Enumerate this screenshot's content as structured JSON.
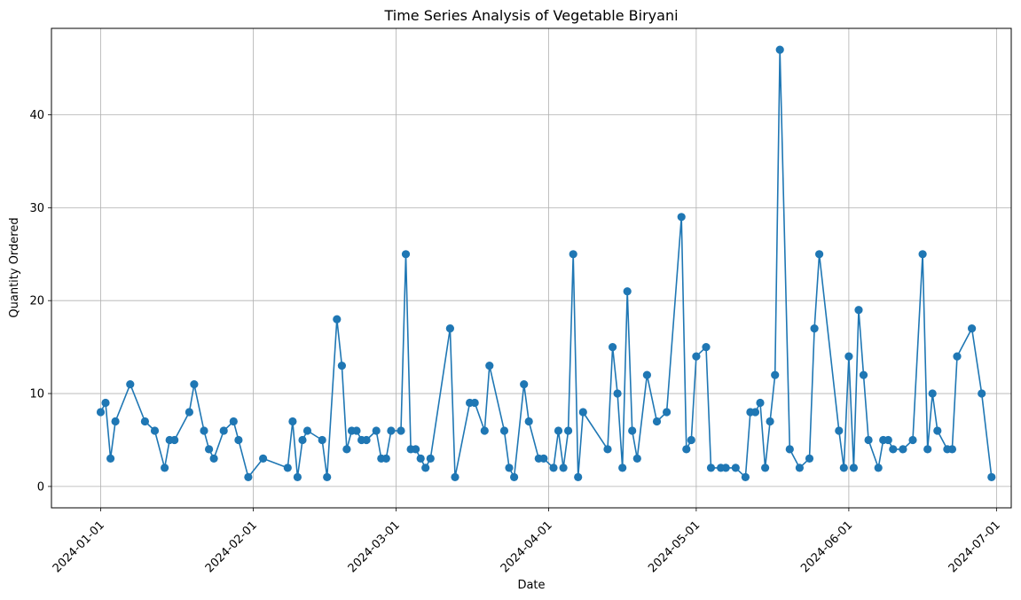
{
  "chart_data": {
    "type": "line",
    "title": "Time Series Analysis of Vegetable Biryani",
    "xlabel": "Date",
    "ylabel": "Quantity Ordered",
    "xlim": [
      "2023-12-22",
      "2024-07-04"
    ],
    "ylim": [
      -2.3,
      49.3
    ],
    "x_ticks": [
      "2024-01-01",
      "2024-02-01",
      "2024-03-01",
      "2024-04-01",
      "2024-05-01",
      "2024-06-01",
      "2024-07-01"
    ],
    "y_ticks": [
      0,
      10,
      20,
      30,
      40
    ],
    "grid": true,
    "marker": "circle",
    "color": "#1f77b4",
    "series": [
      {
        "points": [
          [
            "2024-01-01",
            8
          ],
          [
            "2024-01-02",
            9
          ],
          [
            "2024-01-03",
            3
          ],
          [
            "2024-01-04",
            7
          ],
          [
            "2024-01-07",
            11
          ],
          [
            "2024-01-10",
            7
          ],
          [
            "2024-01-12",
            6
          ],
          [
            "2024-01-14",
            2
          ],
          [
            "2024-01-15",
            5
          ],
          [
            "2024-01-16",
            5
          ],
          [
            "2024-01-19",
            8
          ],
          [
            "2024-01-20",
            11
          ],
          [
            "2024-01-22",
            6
          ],
          [
            "2024-01-23",
            4
          ],
          [
            "2024-01-24",
            3
          ],
          [
            "2024-01-26",
            6
          ],
          [
            "2024-01-28",
            7
          ],
          [
            "2024-01-29",
            5
          ],
          [
            "2024-01-31",
            1
          ],
          [
            "2024-02-03",
            3
          ],
          [
            "2024-02-08",
            2
          ],
          [
            "2024-02-09",
            7
          ],
          [
            "2024-02-10",
            1
          ],
          [
            "2024-02-11",
            5
          ],
          [
            "2024-02-12",
            6
          ],
          [
            "2024-02-15",
            5
          ],
          [
            "2024-02-16",
            1
          ],
          [
            "2024-02-18",
            18
          ],
          [
            "2024-02-19",
            13
          ],
          [
            "2024-02-20",
            4
          ],
          [
            "2024-02-21",
            6
          ],
          [
            "2024-02-22",
            6
          ],
          [
            "2024-02-23",
            5
          ],
          [
            "2024-02-24",
            5
          ],
          [
            "2024-02-26",
            6
          ],
          [
            "2024-02-27",
            3
          ],
          [
            "2024-02-28",
            3
          ],
          [
            "2024-02-29",
            6
          ],
          [
            "2024-03-02",
            6
          ],
          [
            "2024-03-03",
            25
          ],
          [
            "2024-03-04",
            4
          ],
          [
            "2024-03-05",
            4
          ],
          [
            "2024-03-06",
            3
          ],
          [
            "2024-03-07",
            2
          ],
          [
            "2024-03-08",
            3
          ],
          [
            "2024-03-12",
            17
          ],
          [
            "2024-03-13",
            1
          ],
          [
            "2024-03-16",
            9
          ],
          [
            "2024-03-17",
            9
          ],
          [
            "2024-03-19",
            6
          ],
          [
            "2024-03-20",
            13
          ],
          [
            "2024-03-23",
            6
          ],
          [
            "2024-03-24",
            2
          ],
          [
            "2024-03-25",
            1
          ],
          [
            "2024-03-27",
            11
          ],
          [
            "2024-03-28",
            7
          ],
          [
            "2024-03-30",
            3
          ],
          [
            "2024-03-31",
            3
          ],
          [
            "2024-04-02",
            2
          ],
          [
            "2024-04-03",
            6
          ],
          [
            "2024-04-04",
            2
          ],
          [
            "2024-04-05",
            6
          ],
          [
            "2024-04-06",
            25
          ],
          [
            "2024-04-07",
            1
          ],
          [
            "2024-04-08",
            8
          ],
          [
            "2024-04-13",
            4
          ],
          [
            "2024-04-14",
            15
          ],
          [
            "2024-04-15",
            10
          ],
          [
            "2024-04-16",
            2
          ],
          [
            "2024-04-17",
            21
          ],
          [
            "2024-04-18",
            6
          ],
          [
            "2024-04-19",
            3
          ],
          [
            "2024-04-21",
            12
          ],
          [
            "2024-04-23",
            7
          ],
          [
            "2024-04-25",
            8
          ],
          [
            "2024-04-28",
            29
          ],
          [
            "2024-04-29",
            4
          ],
          [
            "2024-04-30",
            5
          ],
          [
            "2024-05-01",
            14
          ],
          [
            "2024-05-03",
            15
          ],
          [
            "2024-05-04",
            2
          ],
          [
            "2024-05-06",
            2
          ],
          [
            "2024-05-07",
            2
          ],
          [
            "2024-05-09",
            2
          ],
          [
            "2024-05-11",
            1
          ],
          [
            "2024-05-12",
            8
          ],
          [
            "2024-05-13",
            8
          ],
          [
            "2024-05-14",
            9
          ],
          [
            "2024-05-15",
            2
          ],
          [
            "2024-05-16",
            7
          ],
          [
            "2024-05-17",
            12
          ],
          [
            "2024-05-18",
            47
          ],
          [
            "2024-05-20",
            4
          ],
          [
            "2024-05-22",
            2
          ],
          [
            "2024-05-24",
            3
          ],
          [
            "2024-05-25",
            17
          ],
          [
            "2024-05-26",
            25
          ],
          [
            "2024-05-30",
            6
          ],
          [
            "2024-05-31",
            2
          ],
          [
            "2024-06-01",
            14
          ],
          [
            "2024-06-02",
            2
          ],
          [
            "2024-06-03",
            19
          ],
          [
            "2024-06-04",
            12
          ],
          [
            "2024-06-05",
            5
          ],
          [
            "2024-06-07",
            2
          ],
          [
            "2024-06-08",
            5
          ],
          [
            "2024-06-09",
            5
          ],
          [
            "2024-06-10",
            4
          ],
          [
            "2024-06-12",
            4
          ],
          [
            "2024-06-14",
            5
          ],
          [
            "2024-06-16",
            25
          ],
          [
            "2024-06-17",
            4
          ],
          [
            "2024-06-18",
            10
          ],
          [
            "2024-06-19",
            6
          ],
          [
            "2024-06-21",
            4
          ],
          [
            "2024-06-22",
            4
          ],
          [
            "2024-06-23",
            14
          ],
          [
            "2024-06-26",
            17
          ],
          [
            "2024-06-28",
            10
          ],
          [
            "2024-06-30",
            1
          ]
        ]
      }
    ]
  }
}
